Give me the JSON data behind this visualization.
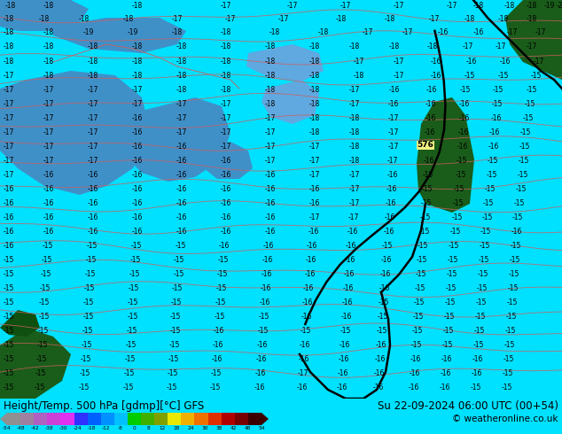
{
  "title_left": "Height/Temp. 500 hPa [gdmp][°C] GFS",
  "title_right": "Su 22-09-2024 06:00 UTC (00+54)",
  "copyright": "© weatheronline.co.uk",
  "colorbar_tick_labels": [
    "-54",
    "-48",
    "-42",
    "-38",
    "-30",
    "-24",
    "-18",
    "-12",
    "-8",
    "0",
    "8",
    "12",
    "18",
    "24",
    "30",
    "38",
    "42",
    "48",
    "54"
  ],
  "colorbar_colors": [
    "#909090",
    "#a080a0",
    "#b060c0",
    "#cc40d8",
    "#e030f0",
    "#3030ff",
    "#0060ff",
    "#0090ff",
    "#00c0ff",
    "#00cc00",
    "#40b000",
    "#80a000",
    "#e8e800",
    "#f0b000",
    "#f07000",
    "#e03000",
    "#b00000",
    "#780000",
    "#3c0000"
  ],
  "map_bg": "#00e0ff",
  "fig_bg": "#00e0ff",
  "bottom_bg": "#d8d8d8",
  "land_blue": "#4090c8",
  "land_blue2": "#60a8e0",
  "land_green_dark": "#1a5c1a",
  "land_green2": "#0f4f0f",
  "fig_width": 6.34,
  "fig_height": 4.9,
  "dpi": 100
}
